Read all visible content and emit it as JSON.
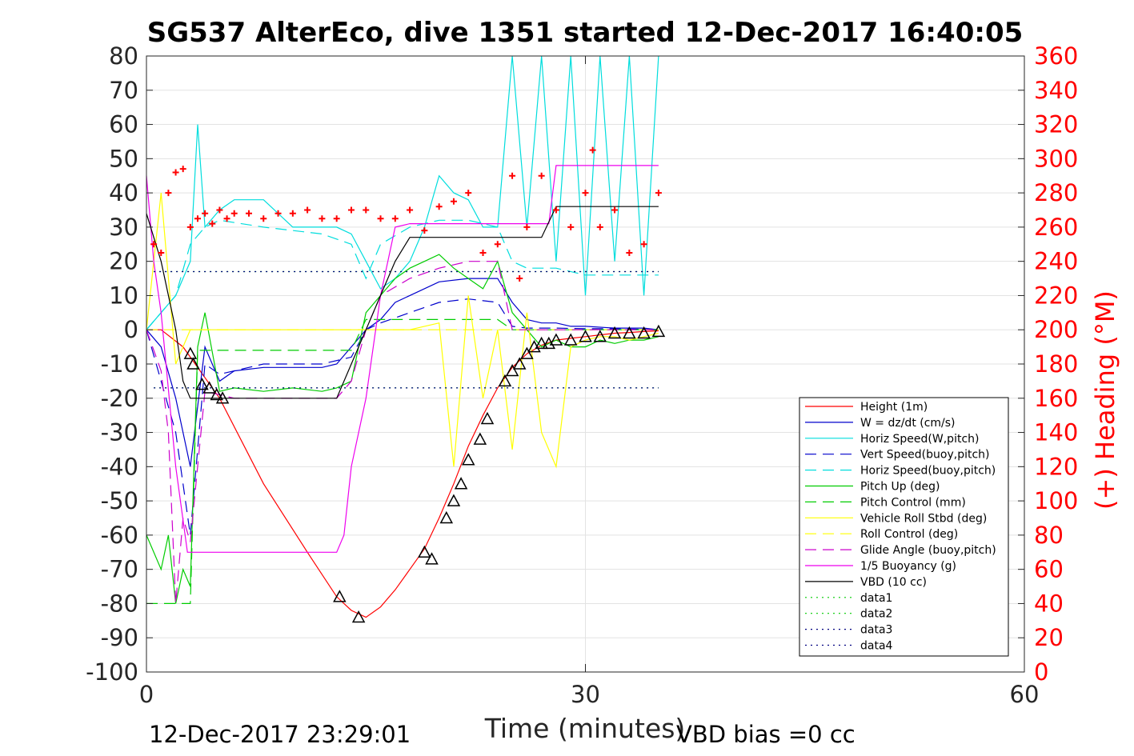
{
  "chart_data": {
    "type": "line",
    "title": "SG537 AlterEco, dive 1351 started 12-Dec-2017 16:40:05",
    "xlabel": "Time (minutes)",
    "ylabel": "",
    "ylabel_right": "(+) Heading (°M)",
    "xlim": [
      0,
      60
    ],
    "ylim": [
      -100,
      80
    ],
    "ylim_right": [
      0,
      360
    ],
    "x_ticks": [
      "0",
      "30",
      "60"
    ],
    "y_ticks": [
      "80",
      "70",
      "60",
      "50",
      "40",
      "30",
      "20",
      "10",
      "0",
      "-10",
      "-20",
      "-30",
      "-40",
      "-50",
      "-60",
      "-70",
      "-80",
      "-90",
      "-100"
    ],
    "y_ticks_right": [
      "360",
      "340",
      "320",
      "300",
      "280",
      "260",
      "240",
      "220",
      "200",
      "180",
      "160",
      "140",
      "120",
      "100",
      "80",
      "60",
      "40",
      "20",
      "0"
    ],
    "grid": true,
    "legend_position": "bottom-right",
    "footer_left": "12-Dec-2017 23:29:01",
    "footer_right": "VBD bias =0 cc",
    "series": [
      {
        "name": "Height (1m)",
        "color": "#ff0000",
        "style": "solid",
        "x": [
          0,
          1,
          2.5,
          5,
          8,
          11,
          13,
          14,
          15,
          16,
          17,
          18,
          19,
          20,
          21,
          22,
          23,
          24,
          25,
          26,
          27,
          28,
          29,
          30,
          31,
          32,
          33,
          34,
          35
        ],
        "y": [
          0,
          0,
          -5,
          -20,
          -45,
          -65,
          -78,
          -82,
          -84,
          -81,
          -76,
          -70,
          -64,
          -55,
          -45,
          -34,
          -25,
          -17,
          -11,
          -7,
          -4.5,
          -3,
          -2.5,
          -2,
          -1.5,
          -1,
          -0.8,
          -0.5,
          -0.3
        ]
      },
      {
        "name": "W = dz/dt (cm/s)",
        "color": "#0000cc",
        "style": "solid",
        "x": [
          0,
          1,
          2,
          3,
          4,
          5,
          6,
          8,
          10,
          12,
          13,
          14,
          15,
          16,
          17,
          18,
          20,
          22,
          24,
          25,
          26,
          27,
          28,
          29,
          30,
          32,
          34,
          35
        ],
        "y": [
          0,
          -5,
          -20,
          -40,
          -5,
          -15,
          -12,
          -11,
          -11,
          -11,
          -10,
          -5,
          0,
          3,
          8,
          10,
          14,
          15,
          15,
          8,
          3,
          2,
          2,
          1,
          1,
          0.5,
          0.5,
          0
        ]
      },
      {
        "name": "Horiz Speed(W,pitch)",
        "color": "#00dddd",
        "style": "solid",
        "x": [
          0,
          1,
          2,
          3,
          3.5,
          4,
          5,
          6,
          8,
          10,
          12,
          13,
          14,
          15,
          16,
          17,
          18,
          19,
          20,
          21,
          22,
          23,
          24,
          25,
          26,
          27,
          28,
          29,
          30,
          31,
          32,
          33,
          34,
          35
        ],
        "y": [
          0,
          5,
          10,
          20,
          60,
          30,
          35,
          38,
          38,
          30,
          30,
          30,
          28,
          20,
          12,
          15,
          20,
          30,
          45,
          40,
          38,
          30,
          30,
          80,
          30,
          80,
          20,
          80,
          10,
          80,
          20,
          80,
          10,
          80
        ]
      },
      {
        "name": "Vert Speed(buoy,pitch)",
        "color": "#0000cc",
        "style": "dashed",
        "x": [
          0,
          2,
          3,
          4,
          5,
          8,
          12,
          14,
          15,
          16,
          18,
          20,
          22,
          24,
          25,
          26,
          28,
          30,
          32,
          35
        ],
        "y": [
          0,
          -30,
          -60,
          -10,
          -13,
          -10,
          -10,
          -8,
          0,
          2,
          5,
          8,
          9,
          8,
          1,
          0.5,
          0.5,
          0.3,
          0.3,
          0
        ]
      },
      {
        "name": "Horiz Speed(buoy,pitch)",
        "color": "#00dddd",
        "style": "dashed",
        "x": [
          0,
          2,
          3,
          4,
          5,
          8,
          12,
          14,
          15,
          16,
          18,
          20,
          22,
          24,
          25,
          26,
          28,
          30,
          32,
          35
        ],
        "y": [
          0,
          10,
          25,
          30,
          32,
          30,
          28,
          25,
          15,
          25,
          30,
          32,
          32,
          30,
          20,
          18,
          18,
          16,
          16,
          16
        ]
      },
      {
        "name": "Pitch Up (deg)",
        "color": "#00cc00",
        "style": "solid",
        "x": [
          0,
          1,
          1.5,
          2,
          2.5,
          3,
          3.5,
          4,
          5,
          6,
          8,
          10,
          12,
          13,
          14,
          15,
          16,
          17,
          18,
          19,
          20,
          21,
          22,
          23,
          24,
          25,
          26,
          27,
          28,
          29,
          30,
          31,
          32,
          33,
          34,
          35
        ],
        "y": [
          -60,
          -70,
          -60,
          -80,
          -70,
          -75,
          -5,
          5,
          -18,
          -17,
          -18,
          -17,
          -18,
          -17,
          -15,
          5,
          10,
          15,
          18,
          20,
          22,
          18,
          15,
          12,
          20,
          5,
          0,
          -5,
          -3,
          -5,
          -5,
          -3,
          -4,
          -3,
          -3,
          -2
        ]
      },
      {
        "name": "Pitch Control (mm)",
        "color": "#00cc00",
        "style": "dashed",
        "x": [
          0,
          2,
          3,
          3.5,
          4,
          6,
          10,
          13,
          14,
          15,
          16,
          18,
          20,
          22,
          24,
          25,
          26,
          28,
          30,
          32,
          35
        ],
        "y": [
          -80,
          -80,
          -80,
          -6,
          -6,
          -6,
          -6,
          -6,
          -6,
          3,
          3,
          3,
          3,
          3,
          3,
          0,
          0,
          0,
          0,
          0,
          0
        ]
      },
      {
        "name": "Vehicle Roll Stbd (deg)",
        "color": "#ffff00",
        "style": "solid",
        "x": [
          0,
          1,
          2,
          3,
          4,
          6,
          8,
          10,
          12,
          14,
          15,
          16,
          18,
          20,
          21,
          22,
          23,
          24,
          25,
          26,
          27,
          28,
          29,
          30,
          31,
          32,
          33,
          34,
          35
        ],
        "y": [
          0,
          40,
          -10,
          0,
          0,
          0,
          0,
          0,
          0,
          0,
          0,
          0,
          0,
          2,
          -40,
          10,
          -20,
          0,
          -35,
          5,
          -30,
          -40,
          -5,
          -3,
          -2,
          -2,
          -3,
          -2,
          -1
        ]
      },
      {
        "name": "Roll Control (deg)",
        "color": "#ffff00",
        "style": "dashed",
        "x": [
          0,
          2,
          4,
          6,
          10,
          14,
          16,
          20,
          22,
          24,
          26,
          28,
          30,
          32,
          35
        ],
        "y": [
          0,
          0,
          0,
          0,
          0,
          0,
          0,
          0,
          0,
          0,
          0,
          0,
          0,
          0,
          0
        ]
      },
      {
        "name": "Glide Angle (buoy,pitch)",
        "color": "#cc00cc",
        "style": "dashed",
        "x": [
          0,
          1,
          1.5,
          2,
          2.5,
          3,
          4,
          6,
          10,
          13,
          14,
          15,
          16,
          18,
          20,
          22,
          24,
          25,
          26,
          28,
          30,
          32,
          35
        ],
        "y": [
          0,
          -12,
          -30,
          -80,
          -55,
          -62,
          -18,
          -20,
          -20,
          -20,
          -15,
          0,
          10,
          15,
          18,
          20,
          20,
          0,
          0,
          0,
          0,
          0,
          0
        ]
      },
      {
        "name": "1/5 Buoyancy (g)",
        "color": "#ee00ee",
        "style": "solid",
        "x": [
          0,
          0.5,
          1,
          2,
          2.8,
          3,
          5,
          8,
          13,
          13.5,
          14,
          15,
          16,
          17,
          18,
          20,
          24,
          25,
          27.5,
          28,
          35
        ],
        "y": [
          45,
          20,
          5,
          -40,
          -65,
          -65,
          -65,
          -65,
          -65,
          -60,
          -40,
          -20,
          10,
          30,
          31,
          31,
          31,
          31,
          31,
          48,
          48
        ]
      },
      {
        "name": "VBD (10 cc)",
        "color": "#000000",
        "style": "solid",
        "x": [
          0,
          1,
          2,
          2.5,
          3,
          4,
          6,
          10,
          13,
          14,
          15,
          16,
          17,
          18,
          24,
          27,
          28,
          35
        ],
        "y": [
          34,
          20,
          0,
          -15,
          -20,
          -20,
          -20,
          -20,
          -20,
          -10,
          0,
          10,
          20,
          27,
          27,
          27,
          36,
          36
        ]
      },
      {
        "name": "data1",
        "color": "#00cc00",
        "style": "dotted",
        "x": [
          0.5,
          35
        ],
        "y": [
          17,
          17
        ]
      },
      {
        "name": "data2",
        "color": "#00cc00",
        "style": "dotted",
        "x": [
          0.5,
          35
        ],
        "y": [
          -17,
          -17
        ]
      },
      {
        "name": "data3",
        "color": "#000080",
        "style": "dotted",
        "x": [
          0.5,
          35
        ],
        "y": [
          17,
          17
        ]
      },
      {
        "name": "data4",
        "color": "#000080",
        "style": "dotted",
        "x": [
          0.5,
          35
        ],
        "y": [
          -17,
          -17
        ]
      }
    ],
    "heading_points": {
      "color": "#ff0000",
      "marker": "+",
      "axis": "right",
      "x": [
        0.5,
        1,
        1.5,
        2,
        2.5,
        3,
        3.5,
        4,
        4.5,
        5,
        5.5,
        6,
        7,
        8,
        9,
        10,
        11,
        12,
        13,
        14,
        15,
        16,
        17,
        18,
        19,
        20,
        21,
        22,
        23,
        24,
        25,
        25.5,
        26,
        27,
        28,
        29,
        30,
        30.5,
        31,
        32,
        33,
        34,
        35
      ],
      "y": [
        250,
        245,
        280,
        292,
        294,
        260,
        265,
        268,
        262,
        270,
        265,
        268,
        268,
        265,
        268,
        268,
        270,
        265,
        265,
        270,
        270,
        265,
        265,
        270,
        258,
        272,
        275,
        280,
        245,
        250,
        290,
        230,
        260,
        290,
        270,
        260,
        280,
        305,
        260,
        270,
        245,
        250,
        280
      ]
    },
    "triangle_markers": {
      "color": "#000000",
      "marker": "triangle",
      "x": [
        3,
        3.2,
        3.8,
        4.3,
        4.8,
        5.2,
        13.2,
        14.5,
        19,
        19.5,
        20.5,
        21,
        21.5,
        22,
        22.8,
        23.3,
        24.5,
        25,
        25.5,
        26,
        26.5,
        27,
        27.5,
        28,
        29,
        30,
        31,
        32,
        33,
        34,
        35
      ],
      "y": [
        -7,
        -10,
        -16,
        -17,
        -19,
        -20,
        -78,
        -84,
        -65,
        -67,
        -55,
        -50,
        -45,
        -38,
        -32,
        -26,
        -15,
        -12,
        -10,
        -7,
        -5,
        -4,
        -4,
        -3,
        -3,
        -2,
        -2,
        -1,
        -1,
        -1,
        -0.5
      ]
    }
  }
}
